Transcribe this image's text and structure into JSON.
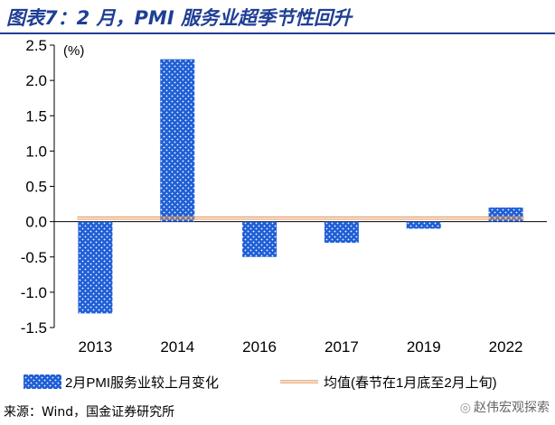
{
  "title": "图表7：2 月，PMI 服务业超季节性回升",
  "source": "来源：Wind，国金证券研究所",
  "watermark": "赵伟宏观探索",
  "colors": {
    "title": "#1f3f95",
    "bar_fill": "#1f5fd6",
    "bar_dot": "#ffffff",
    "avg_line": "#e59a63",
    "axis": "#000000"
  },
  "chart_data": {
    "type": "bar",
    "unit_label": "(%)",
    "categories": [
      "2013",
      "2014",
      "2016",
      "2017",
      "2019",
      "2022"
    ],
    "series": [
      {
        "name": "2月PMI服务业较上月变化",
        "kind": "bar",
        "values": [
          -1.3,
          2.3,
          -0.5,
          -0.3,
          -0.1,
          0.2
        ]
      },
      {
        "name": "均值(春节在1月底至2月上旬)",
        "kind": "line",
        "values": [
          0.05,
          0.05,
          0.05,
          0.05,
          0.05,
          0.05
        ]
      }
    ],
    "ylim": [
      -1.5,
      2.5
    ],
    "yticks": [
      -1.5,
      -1.0,
      -0.5,
      0.0,
      0.5,
      1.0,
      1.5,
      2.0,
      2.5
    ],
    "ytick_labels": [
      "-1.5",
      "-1.0",
      "-0.5",
      "0.0",
      "0.5",
      "1.0",
      "1.5",
      "2.0",
      "2.5"
    ],
    "grid": false,
    "legend_position": "bottom"
  }
}
